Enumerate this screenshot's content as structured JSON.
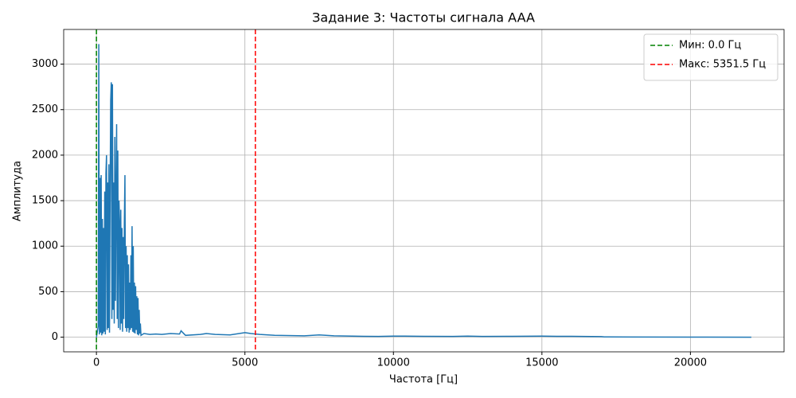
{
  "chart_data": {
    "type": "line",
    "title": "Задание 3: Частоты сигнала AAA",
    "x_label": "Частота [Гц]",
    "y_label": "Амплитуда",
    "x": [
      0,
      40,
      60,
      80,
      100,
      120,
      140,
      160,
      180,
      200,
      220,
      240,
      260,
      280,
      300,
      320,
      340,
      360,
      380,
      400,
      420,
      440,
      460,
      480,
      500,
      520,
      540,
      560,
      580,
      600,
      620,
      640,
      660,
      680,
      700,
      720,
      740,
      760,
      780,
      800,
      820,
      840,
      860,
      880,
      900,
      920,
      940,
      960,
      980,
      1000,
      1020,
      1040,
      1060,
      1080,
      1100,
      1120,
      1140,
      1160,
      1180,
      1200,
      1220,
      1240,
      1260,
      1280,
      1300,
      1320,
      1340,
      1360,
      1380,
      1400,
      1420,
      1440,
      1460,
      1480,
      1500,
      1600,
      1800,
      2000,
      2200,
      2500,
      2800,
      2850,
      3000,
      3500,
      3700,
      4000,
      4500,
      5000,
      5200,
      5500,
      6000,
      7000,
      7500,
      8000,
      9000,
      9500,
      10000,
      11000,
      12000,
      12500,
      13000,
      14000,
      15000,
      15500,
      16000,
      17000,
      17100,
      18000,
      20000,
      22050
    ],
    "values": [
      0,
      80,
      120,
      3220,
      30,
      1750,
      50,
      1780,
      20,
      1300,
      40,
      1200,
      60,
      1600,
      30,
      1800,
      2000,
      80,
      1700,
      100,
      1900,
      50,
      1500,
      2600,
      2800,
      200,
      2780,
      300,
      1700,
      150,
      2200,
      400,
      1600,
      2340,
      200,
      2050,
      100,
      1500,
      1250,
      80,
      1400,
      150,
      1200,
      60,
      1100,
      200,
      1250,
      1780,
      100,
      1000,
      60,
      900,
      100,
      800,
      50,
      600,
      80,
      900,
      100,
      1220,
      60,
      1000,
      50,
      600,
      40,
      560,
      80,
      450,
      30,
      430,
      20,
      300,
      40,
      150,
      20,
      40,
      30,
      35,
      30,
      40,
      35,
      70,
      20,
      30,
      40,
      30,
      25,
      50,
      40,
      30,
      20,
      15,
      25,
      15,
      10,
      8,
      12,
      10,
      8,
      12,
      8,
      10,
      12,
      10,
      10,
      6,
      3,
      2,
      1,
      0
    ],
    "color": "#1f77b4",
    "vlines": [
      {
        "value": 0,
        "label": "Мин: 0.0 Гц",
        "color": "#008000"
      },
      {
        "value": 5351.5,
        "label": "Макс: 5351.5 Гц",
        "color": "#ff0000"
      }
    ],
    "xlim": [
      -1102.5,
      23152.5
    ],
    "ylim": [
      -161,
      3381
    ],
    "xticks": [
      0,
      5000,
      10000,
      15000,
      20000
    ],
    "yticks": [
      0,
      500,
      1000,
      1500,
      2000,
      2500,
      3000
    ],
    "grid": true,
    "legend": "upper right"
  }
}
